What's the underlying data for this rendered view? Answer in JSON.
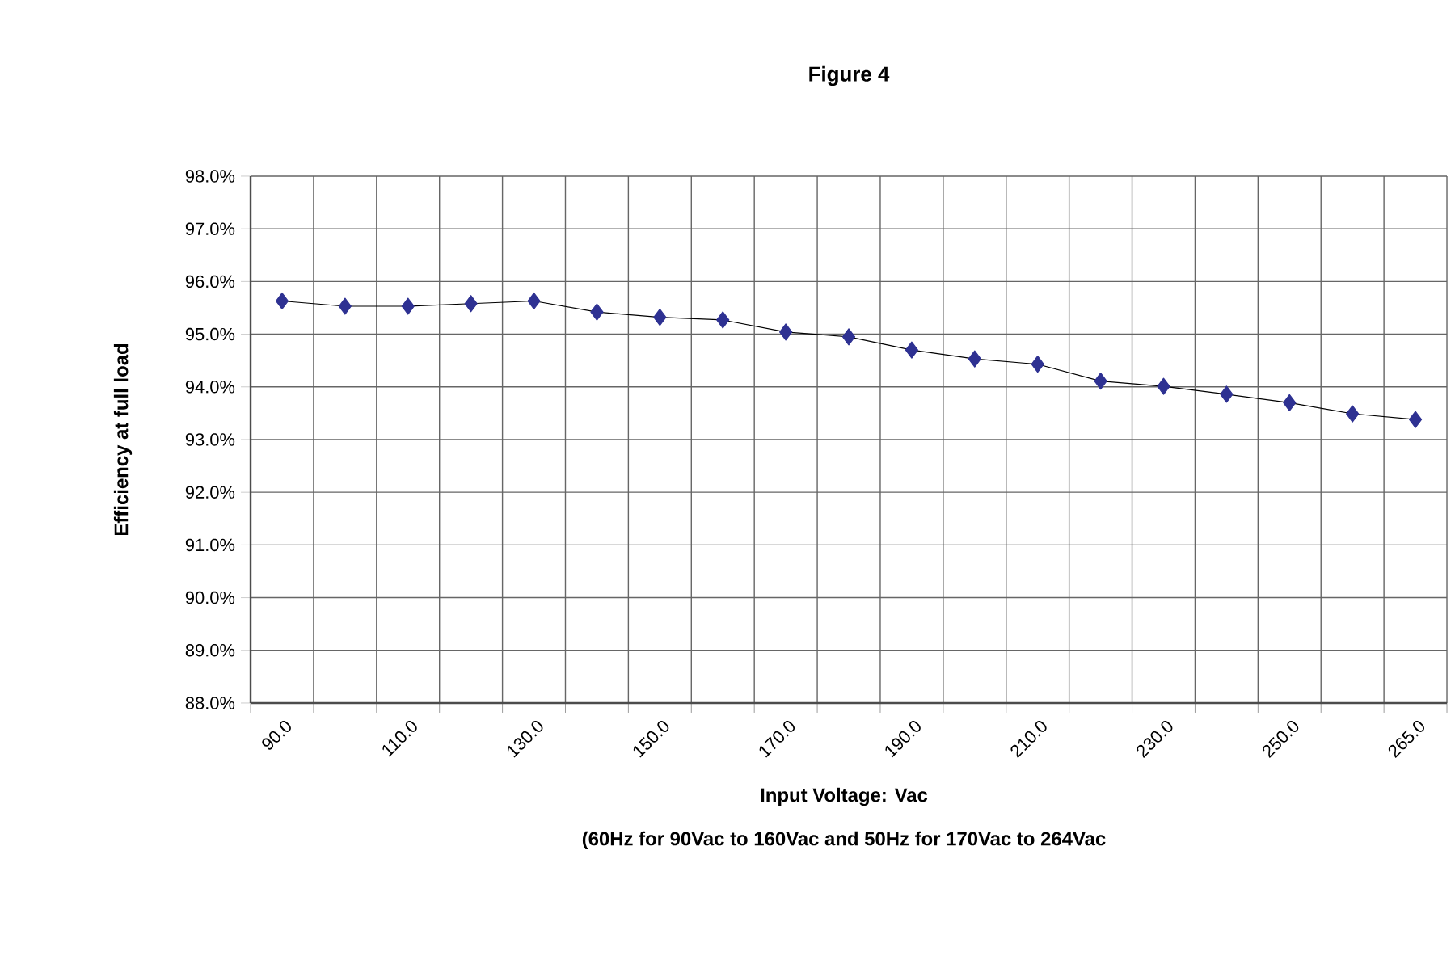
{
  "chart_data": {
    "type": "line",
    "title": "Figure 4",
    "xlabel": "Input Voltage: Vac",
    "ylabel": "Efficiency at full load",
    "annotations": [
      "(60Hz for 90Vac to 160Vac and 50Hz for 170Vac to 264Vac"
    ],
    "categories": [
      "90.0",
      null,
      "110.0",
      null,
      "130.0",
      null,
      "150.0",
      null,
      "170.0",
      null,
      "190.0",
      null,
      "210.0",
      null,
      "230.0",
      null,
      "250.0",
      null,
      "265.0"
    ],
    "series": [
      {
        "color": "#2e3192",
        "values": [
          95.63,
          95.53,
          95.53,
          95.58,
          95.63,
          95.42,
          95.32,
          95.27,
          95.04,
          94.95,
          94.7,
          94.53,
          94.43,
          94.11,
          94.01,
          93.86,
          93.7,
          93.49,
          93.38
        ]
      }
    ],
    "ylim": [
      88,
      98
    ],
    "yticks": [
      {
        "value": 88,
        "label": "88.0%"
      },
      {
        "value": 89,
        "label": "89.0%"
      },
      {
        "value": 90,
        "label": "90.0%"
      },
      {
        "value": 91,
        "label": "91.0%"
      },
      {
        "value": 92,
        "label": "92.0%"
      },
      {
        "value": 93,
        "label": "93.0%"
      },
      {
        "value": 94,
        "label": "94.0%"
      },
      {
        "value": 95,
        "label": "95.0%"
      },
      {
        "value": 96,
        "label": "96.0%"
      },
      {
        "value": 97,
        "label": "97.0%"
      },
      {
        "value": 98,
        "label": "98.0%"
      }
    ],
    "grid": true,
    "marker": "diamond",
    "line_style": "solid"
  }
}
